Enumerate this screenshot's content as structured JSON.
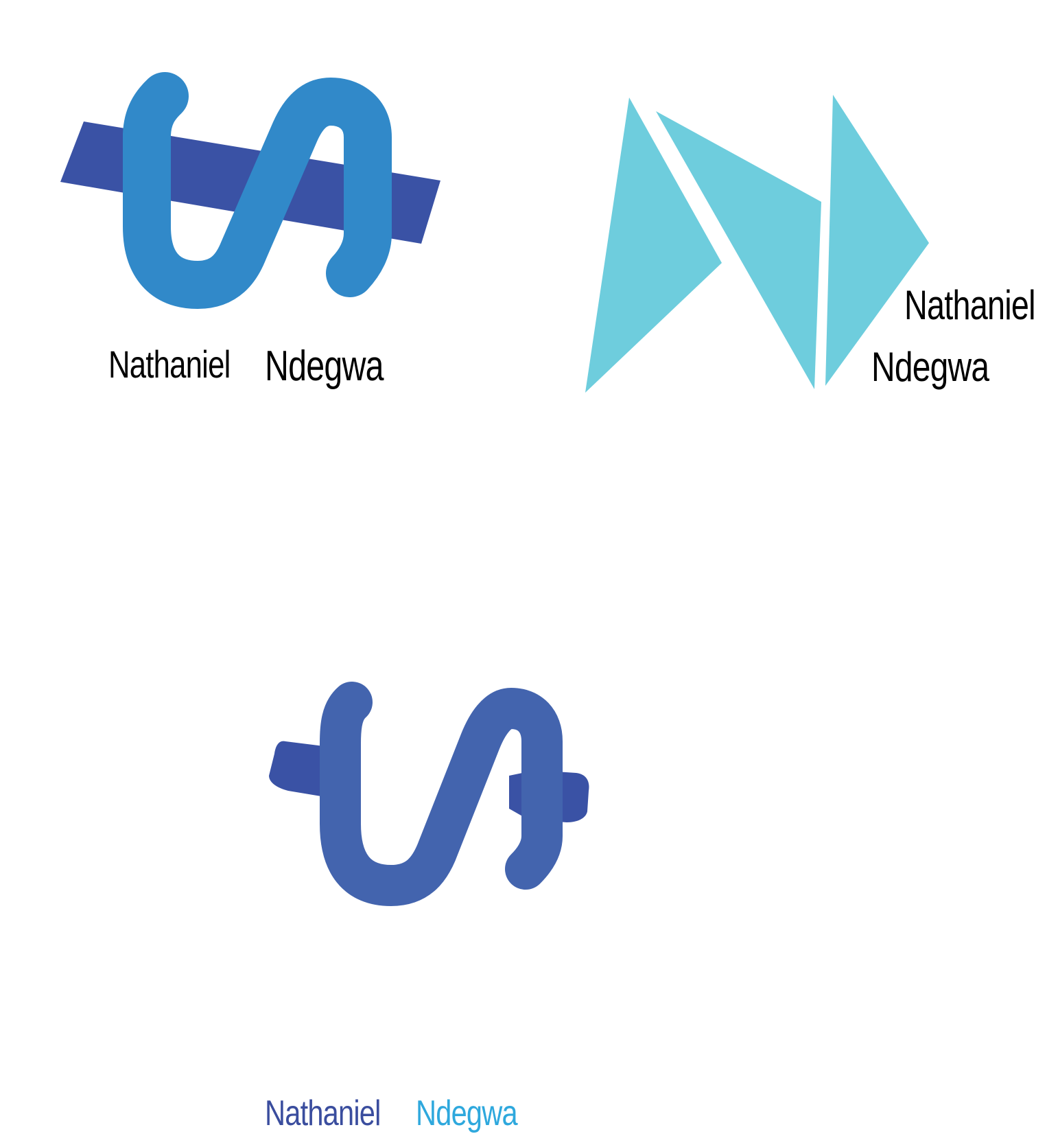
{
  "colors": {
    "s_blue": "#3189c9",
    "band_navy": "#3a52a5",
    "triangle_cyan": "#6ecddd",
    "s_indigo": "#4364ae",
    "text_black": "#000000",
    "text_navy": "#3a4d9e",
    "text_sky": "#2ea8dd"
  },
  "logos": [
    {
      "name_first": "Nathaniel",
      "name_last": "Ndegwa",
      "icon": "s-wave-mark-icon"
    },
    {
      "name_first": "Nathaniel",
      "name_last": "Ndegwa",
      "icon": "triangle-arrows-mark-icon"
    },
    {
      "name_first": "Nathaniel",
      "name_last": "Ndegwa",
      "icon": "s-wave-mark-rounded-icon"
    }
  ]
}
